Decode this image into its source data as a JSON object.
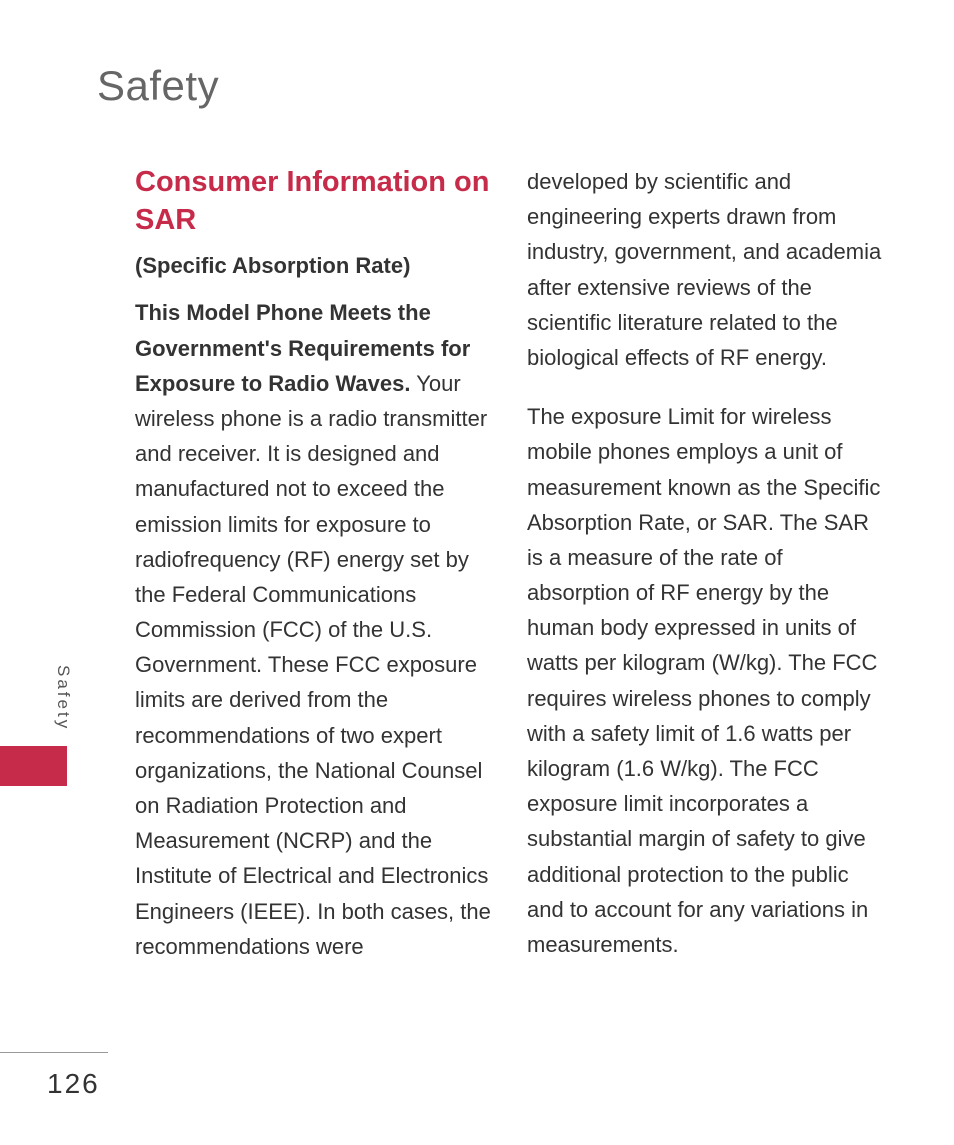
{
  "page": {
    "title": "Safety",
    "number": "126",
    "sidebar_label": "Safety"
  },
  "section": {
    "heading": "Consumer Information on SAR",
    "subtitle": "(Specific Absorption Rate)"
  },
  "paragraphs": {
    "p1_bold": "This Model Phone Meets the Government's Requirements for Exposure to Radio Waves.",
    "p1_rest": " Your wireless phone is a radio transmitter and receiver. It is designed and manufactured not to exceed the emission limits for exposure to radiofrequency (RF) energy set by the Federal Communications Commission (FCC) of the U.S. Government. These FCC exposure limits are derived from the recommendations of two expert organizations, the National Counsel on Radiation Protection and Measurement (NCRP) and the Institute of Electrical and Electronics Engineers (IEEE). In both cases, the recommendations were",
    "p2": "developed by scientific and engineering experts drawn from industry, government, and academia after extensive reviews of the scientific literature related to the biological effects of RF energy.",
    "p3": "The exposure Limit for wireless mobile phones employs a unit of measurement known as the Specific Absorption Rate, or SAR. The SAR is a measure of the rate of absorption of RF energy by the human body expressed in units of watts per kilogram (W/kg). The FCC requires wireless phones to comply with a safety limit of 1.6 watts per kilogram (1.6 W/kg). The FCC exposure limit incorporates a substantial margin of safety to give additional protection to the public and to account for any variations in measurements."
  },
  "colors": {
    "accent": "#c72b4a",
    "title_gray": "#666666",
    "body_text": "#333333",
    "background": "#ffffff"
  },
  "typography": {
    "title_size": 42,
    "heading_size": 29,
    "body_size": 22,
    "page_number_size": 28
  }
}
